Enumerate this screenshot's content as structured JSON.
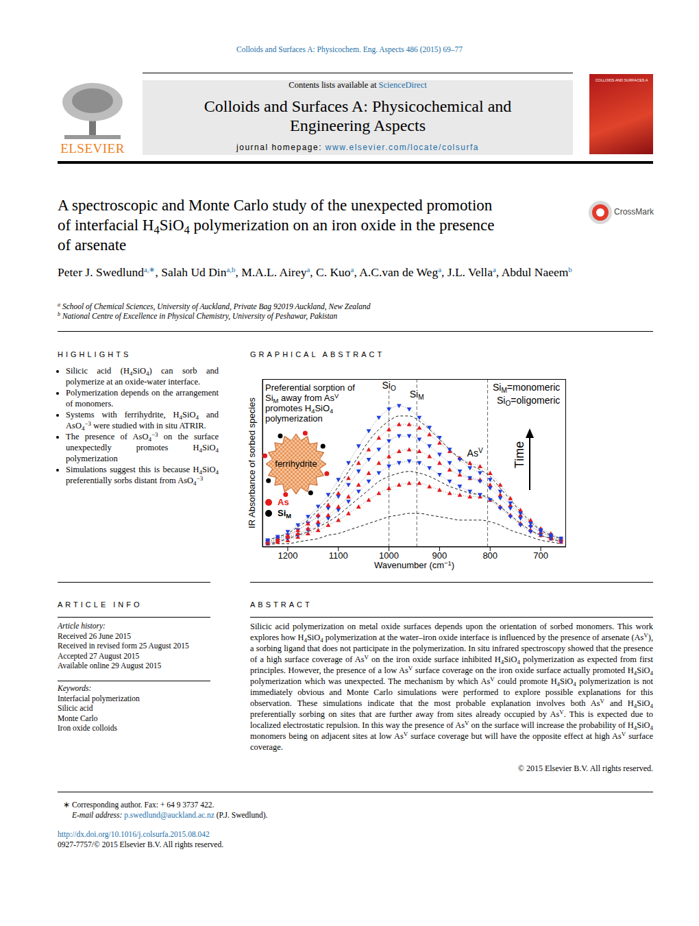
{
  "header": {
    "citation": "Colloids and Surfaces A: Physicochem. Eng. Aspects 486 (2015) 69–77",
    "contents_prefix": "Contents lists available at ",
    "contents_link": "ScienceDirect",
    "journal": [
      "Colloids and Surfaces A: Physicochemical and",
      "Engineering Aspects"
    ],
    "homepage_prefix": "journal homepage: ",
    "homepage_link": "www.elsevier.com/locate/colsurfa",
    "publisher": "ELSEVIER",
    "cover_text": "COLLOIDS AND SURFACES A",
    "crossmark": "CrossMark"
  },
  "title": [
    [
      "A spectroscopic and Monte Carlo study of the unexpected promotion"
    ],
    [
      "of interfacial H",
      {
        "sub": "4"
      },
      "SiO",
      {
        "sub": "4"
      },
      " polymerization on an iron oxide in the presence"
    ],
    [
      "of arsenate"
    ]
  ],
  "authors": [
    {
      "name": "Peter J. Swedlund",
      "aff": "a,∗"
    },
    {
      "name": "Salah Ud Din",
      "aff": "a,b"
    },
    {
      "name": "M.A.L. Airey",
      "aff": "a"
    },
    {
      "name": "C. Kuo",
      "aff": "a"
    },
    {
      "name": "A.C.van de Weg",
      "aff": "a"
    },
    {
      "name": "J.L. Vella",
      "aff": "a"
    },
    {
      "name": "Abdul Naeem",
      "aff": "b"
    }
  ],
  "affiliations": [
    {
      "label": "a",
      "text": "School of Chemical Sciences, University of Auckland, Private Bag 92019 Auckland, New Zealand"
    },
    {
      "label": "b",
      "text": "National Centre of Excellence in Physical Chemistry, University of Peshawar, Pakistan"
    }
  ],
  "highlights": {
    "heading": "HIGHLIGHTS",
    "items": [
      [
        "Silicic acid (H",
        {
          "sub": "4"
        },
        "SiO",
        {
          "sub": "4"
        },
        ") can sorb and polymerize at an oxide-water interface."
      ],
      [
        "Polymerization depends on the arrangement of monomers."
      ],
      [
        "Systems with ferrihydrite, H",
        {
          "sub": "4"
        },
        "SiO",
        {
          "sub": "4"
        },
        " and AsO",
        {
          "sub": "4"
        },
        {
          "sup": "−3"
        },
        " were studied with in situ ATRIR."
      ],
      [
        "The presence of AsO",
        {
          "sub": "4"
        },
        {
          "sup": "−3"
        },
        " on the surface unexpectedly promotes H",
        {
          "sub": "4"
        },
        "SiO",
        {
          "sub": "4"
        },
        " polymerization"
      ],
      [
        "Simulations suggest this is because H",
        {
          "sub": "4"
        },
        "SiO",
        {
          "sub": "4"
        },
        " preferentially sorbs distant from AsO",
        {
          "sub": "4"
        },
        {
          "sup": "−3"
        }
      ]
    ]
  },
  "graphical_abstract_heading": "GRAPHICAL ABSTRACT",
  "chart_data": {
    "type": "line",
    "x_label": [
      "Wavenumber (cm",
      {
        "sup": "−1"
      },
      ")"
    ],
    "y_label": "IR Absorbance of sorbed species",
    "x": [
      1240,
      1220,
      1200,
      1180,
      1160,
      1140,
      1120,
      1100,
      1080,
      1060,
      1040,
      1020,
      1000,
      980,
      960,
      940,
      920,
      900,
      880,
      860,
      840,
      820,
      800,
      780,
      760,
      740,
      720,
      700,
      680,
      660
    ],
    "xlim": [
      1250,
      650
    ],
    "xticks": [
      1200,
      1100,
      1000,
      900,
      800,
      700
    ],
    "ylim": [
      0,
      1
    ],
    "tick_labels": "x",
    "series": [
      {
        "color": "#000000",
        "marker": "none",
        "line_style": "dashed",
        "values": [
          0.01,
          0.02,
          0.02,
          0.03,
          0.04,
          0.05,
          0.07,
          0.08,
          0.1,
          0.12,
          0.14,
          0.16,
          0.18,
          0.19,
          0.2,
          0.2,
          0.19,
          0.18,
          0.17,
          0.16,
          0.16,
          0.16,
          0.15,
          0.13,
          0.1,
          0.08,
          0.06,
          0.04,
          0.03,
          0.02
        ]
      },
      {
        "color": "#e31a1c",
        "marker": "triangle-up",
        "line_style": "dotted",
        "values": [
          0.02,
          0.03,
          0.04,
          0.06,
          0.08,
          0.1,
          0.13,
          0.16,
          0.2,
          0.24,
          0.28,
          0.32,
          0.35,
          0.37,
          0.38,
          0.38,
          0.36,
          0.34,
          0.32,
          0.31,
          0.3,
          0.3,
          0.28,
          0.24,
          0.19,
          0.14,
          0.1,
          0.07,
          0.05,
          0.03
        ]
      },
      {
        "color": "#000000",
        "marker": "none",
        "line_style": "dashed",
        "values": [
          0.02,
          0.03,
          0.05,
          0.07,
          0.09,
          0.12,
          0.15,
          0.19,
          0.24,
          0.29,
          0.34,
          0.39,
          0.42,
          0.44,
          0.45,
          0.44,
          0.42,
          0.39,
          0.36,
          0.34,
          0.32,
          0.31,
          0.29,
          0.24,
          0.19,
          0.14,
          0.1,
          0.07,
          0.05,
          0.03
        ]
      },
      {
        "color": "#1f3fe0",
        "marker": "triangle-down",
        "line_style": "dotted",
        "values": [
          0.02,
          0.04,
          0.05,
          0.07,
          0.1,
          0.13,
          0.17,
          0.22,
          0.27,
          0.33,
          0.39,
          0.44,
          0.48,
          0.5,
          0.51,
          0.5,
          0.47,
          0.43,
          0.39,
          0.36,
          0.33,
          0.31,
          0.28,
          0.23,
          0.18,
          0.13,
          0.09,
          0.07,
          0.05,
          0.03
        ]
      },
      {
        "color": "#e31a1c",
        "marker": "triangle-up",
        "line_style": "dotted",
        "values": [
          0.03,
          0.04,
          0.06,
          0.08,
          0.11,
          0.15,
          0.19,
          0.24,
          0.3,
          0.37,
          0.44,
          0.5,
          0.54,
          0.57,
          0.58,
          0.57,
          0.54,
          0.5,
          0.46,
          0.43,
          0.41,
          0.4,
          0.37,
          0.31,
          0.25,
          0.19,
          0.13,
          0.09,
          0.06,
          0.04
        ]
      },
      {
        "color": "#1f3fe0",
        "marker": "triangle-down",
        "line_style": "dotted",
        "values": [
          0.03,
          0.05,
          0.07,
          0.1,
          0.14,
          0.18,
          0.23,
          0.3,
          0.37,
          0.45,
          0.52,
          0.58,
          0.63,
          0.66,
          0.66,
          0.64,
          0.6,
          0.55,
          0.5,
          0.45,
          0.41,
          0.39,
          0.35,
          0.29,
          0.23,
          0.17,
          0.12,
          0.09,
          0.06,
          0.04
        ]
      },
      {
        "color": "#e31a1c",
        "marker": "triangle-up",
        "line_style": "dotted",
        "values": [
          0.03,
          0.05,
          0.07,
          0.1,
          0.14,
          0.19,
          0.25,
          0.32,
          0.41,
          0.5,
          0.58,
          0.65,
          0.7,
          0.73,
          0.73,
          0.71,
          0.67,
          0.62,
          0.57,
          0.53,
          0.5,
          0.48,
          0.44,
          0.37,
          0.29,
          0.22,
          0.16,
          0.11,
          0.08,
          0.05
        ]
      },
      {
        "color": "#000000",
        "marker": "none",
        "line_style": "dashed",
        "values": [
          0.04,
          0.06,
          0.08,
          0.12,
          0.16,
          0.22,
          0.28,
          0.36,
          0.45,
          0.54,
          0.63,
          0.7,
          0.75,
          0.78,
          0.78,
          0.75,
          0.7,
          0.64,
          0.58,
          0.53,
          0.49,
          0.46,
          0.42,
          0.35,
          0.28,
          0.21,
          0.15,
          0.1,
          0.07,
          0.05
        ]
      },
      {
        "color": "#1f3fe0",
        "marker": "triangle-down",
        "line_style": "dotted",
        "values": [
          0.04,
          0.06,
          0.09,
          0.13,
          0.18,
          0.24,
          0.31,
          0.4,
          0.5,
          0.6,
          0.69,
          0.77,
          0.82,
          0.84,
          0.82,
          0.77,
          0.71,
          0.65,
          0.58,
          0.52,
          0.47,
          0.44,
          0.4,
          0.33,
          0.26,
          0.2,
          0.14,
          0.1,
          0.07,
          0.05
        ]
      }
    ],
    "reference_lines": [
      {
        "x": 1000,
        "label": [
          "Si",
          {
            "sub": "O"
          }
        ]
      },
      {
        "x": 945,
        "label": [
          "Si",
          {
            "sub": "M"
          }
        ]
      },
      {
        "x": 805
      }
    ],
    "as_annotation": {
      "x": 830,
      "y": 0.55,
      "text": [
        "As",
        {
          "sup": "V"
        }
      ]
    },
    "note": [
      [
        "Preferential sorption of"
      ],
      [
        "Si",
        {
          "sub": "M"
        },
        " away from As",
        {
          "sup": "V"
        }
      ],
      [
        "promotes H",
        {
          "sub": "4"
        },
        "SiO",
        {
          "sub": "4"
        }
      ],
      [
        "polymerization"
      ]
    ],
    "definitions": [
      [
        "Si",
        {
          "sub": "M"
        },
        "=monomeric"
      ],
      [
        "Si",
        {
          "sub": "O"
        },
        "=oligomeric"
      ]
    ],
    "time_label": "Time",
    "particle_label": "ferrihydrite",
    "legend_items": [
      {
        "label": [
          "As"
        ],
        "color": "#e31a1c"
      },
      {
        "label": [
          "Si",
          {
            "sub": "M"
          }
        ],
        "color": "#000000"
      }
    ]
  },
  "article_info": {
    "heading": "ARTICLE INFO",
    "history_heading": "Article history:",
    "history": [
      "Received 26 June 2015",
      "Received in revised form 25 August 2015",
      "Accepted 27 August 2015",
      "Available online 29 August 2015"
    ],
    "keywords_heading": "Keywords:",
    "keywords": [
      "Interfacial polymerization",
      "Silicic acid",
      "Monte Carlo",
      "Iron oxide colloids"
    ]
  },
  "abstract": {
    "heading": "ABSTRACT",
    "text": [
      "Silicic acid polymerization on metal oxide surfaces depends upon the orientation of sorbed monomers. This work explores how H",
      {
        "sub": "4"
      },
      "SiO",
      {
        "sub": "4"
      },
      " polymerization at the water–iron oxide interface is influenced by the presence of arsenate (As",
      {
        "sup": "V"
      },
      "), a sorbing ligand that does not participate in the polymerization. In situ infrared spectroscopy showed that the presence of a high surface coverage of As",
      {
        "sup": "V"
      },
      " on the iron oxide surface inhibited H",
      {
        "sub": "4"
      },
      "SiO",
      {
        "sub": "4"
      },
      " polymerization as expected from first principles. However, the presence of a low As",
      {
        "sup": "V"
      },
      " surface coverage on the iron oxide surface actually promoted H",
      {
        "sub": "4"
      },
      "SiO",
      {
        "sub": "4"
      },
      " polymerization which was unexpected. The mechanism by which As",
      {
        "sup": "V"
      },
      " could promote H",
      {
        "sub": "4"
      },
      "SiO",
      {
        "sub": "4"
      },
      " polymerization is not immediately obvious and Monte Carlo simulations were performed to explore possible explanations for this observation. These simulations indicate that the most probable explanation involves both As",
      {
        "sup": "V"
      },
      " and H",
      {
        "sub": "4"
      },
      "SiO",
      {
        "sub": "4"
      },
      " preferentially sorbing on sites that are further away from sites already occupied by As",
      {
        "sup": "V"
      },
      ". This is expected due to localized electrostatic repulsion. In this way the presence of As",
      {
        "sup": "V"
      },
      " on the surface will increase the probability of H",
      {
        "sub": "4"
      },
      "SiO",
      {
        "sub": "4"
      },
      " monomers being on adjacent sites at low As",
      {
        "sup": "V"
      },
      " surface coverage but will have the opposite effect at high As",
      {
        "sup": "V"
      },
      " surface coverage."
    ],
    "copyright": "© 2015 Elsevier B.V. All rights reserved."
  },
  "footnote": {
    "corresponding": "∗ Corresponding author. Fax: + 64 9 3737 422.",
    "email_label": "E-mail address: ",
    "email": "p.swedlund@auckland.ac.nz",
    "email_suffix": " (P.J. Swedlund)."
  },
  "doi": "http://dx.doi.org/10.1016/j.colsurfa.2015.08.042",
  "issn": "0927-7757/© 2015 Elsevier B.V. All rights reserved."
}
